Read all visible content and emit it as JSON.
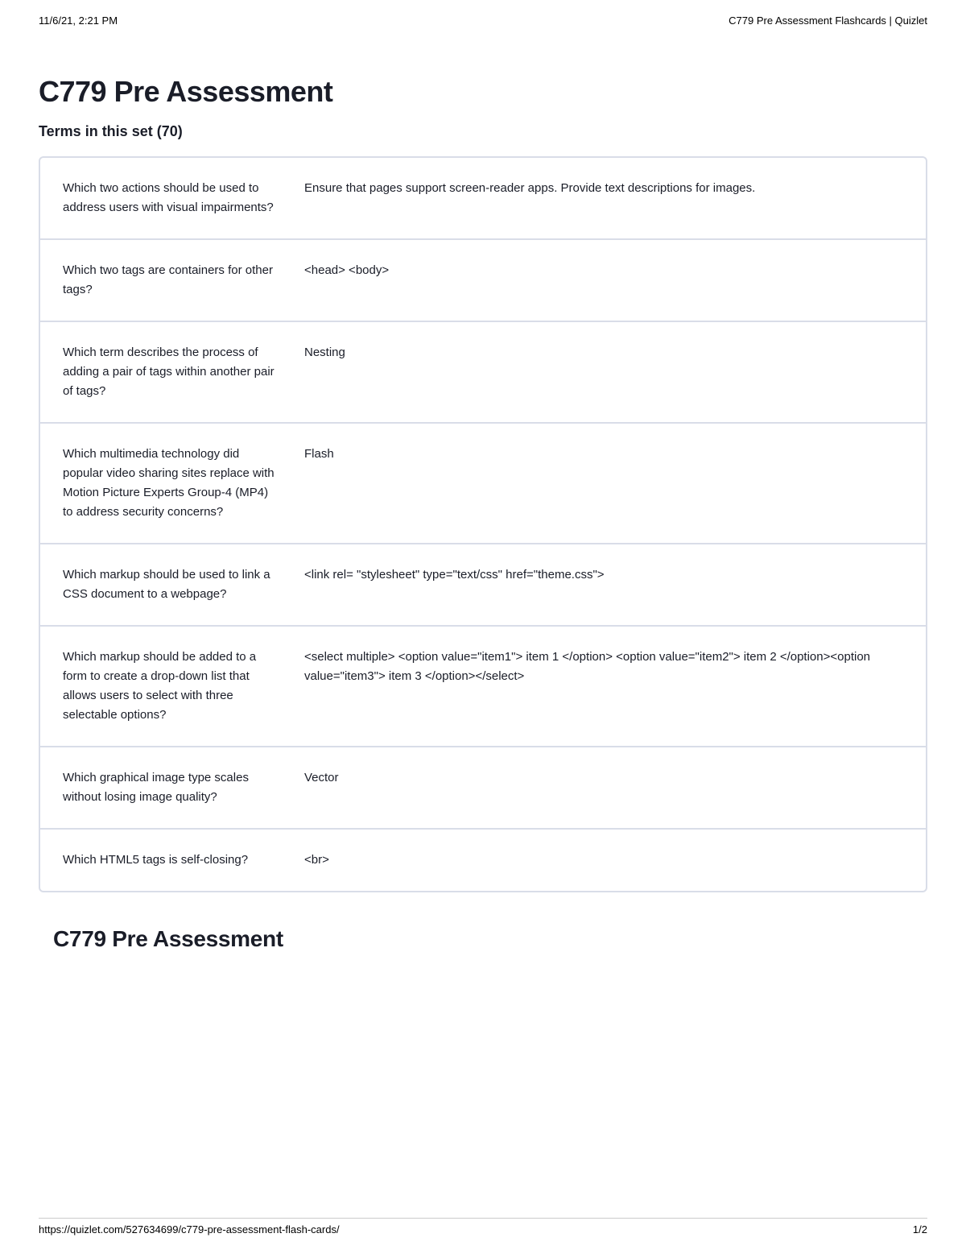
{
  "print_header": {
    "datetime": "11/6/21, 2:21 PM",
    "doc_title": "C779 Pre Assessment Flashcards | Quizlet"
  },
  "page": {
    "title": "C779 Pre Assessment",
    "subtitle": "Terms in this set (70)"
  },
  "cards": [
    {
      "term": "Which two actions should be used to address users with visual impairments?",
      "definition": "Ensure that pages support screen-reader apps. Provide text descriptions for images."
    },
    {
      "term": "Which two tags are containers for other tags?",
      "definition": "<head> <body>"
    },
    {
      "term": "Which term describes the process of adding a pair of tags within another pair of tags?",
      "definition": "Nesting"
    },
    {
      "term": "Which multimedia technology did popular video sharing sites replace with Motion Picture Experts Group-4 (MP4) to address security concerns?",
      "definition": "Flash"
    },
    {
      "term": "Which markup should be used to link a CSS document to a webpage?",
      "definition": "<link rel= \"stylesheet\" type=\"text/css\" href=\"theme.css\">"
    },
    {
      "term": "Which markup should be added to a form to create a drop-down list that allows users to select with three selectable options?",
      "definition": "<select multiple> <option value=\"item1\"> item 1 </option> <option value=\"item2\"> item 2 </option><option value=\"item3\"> item 3 </option></select>"
    },
    {
      "term": "Which graphical image type scales without losing image quality?",
      "definition": "Vector"
    },
    {
      "term": "Which HTML5 tags is self-closing?",
      "definition": "<br>"
    }
  ],
  "section_title": "C779 Pre Assessment",
  "print_footer": {
    "url": "https://quizlet.com/527634699/c779-pre-assessment-flash-cards/",
    "page_num": "1/2"
  },
  "colors": {
    "text_primary": "#1a1d28",
    "border": "#d9dde8",
    "background": "#ffffff",
    "footer_border": "#cccccc"
  },
  "typography": {
    "title_fontsize": 36,
    "subtitle_fontsize": 18,
    "body_fontsize": 15,
    "section_title_fontsize": 28,
    "header_footer_fontsize": 13
  }
}
